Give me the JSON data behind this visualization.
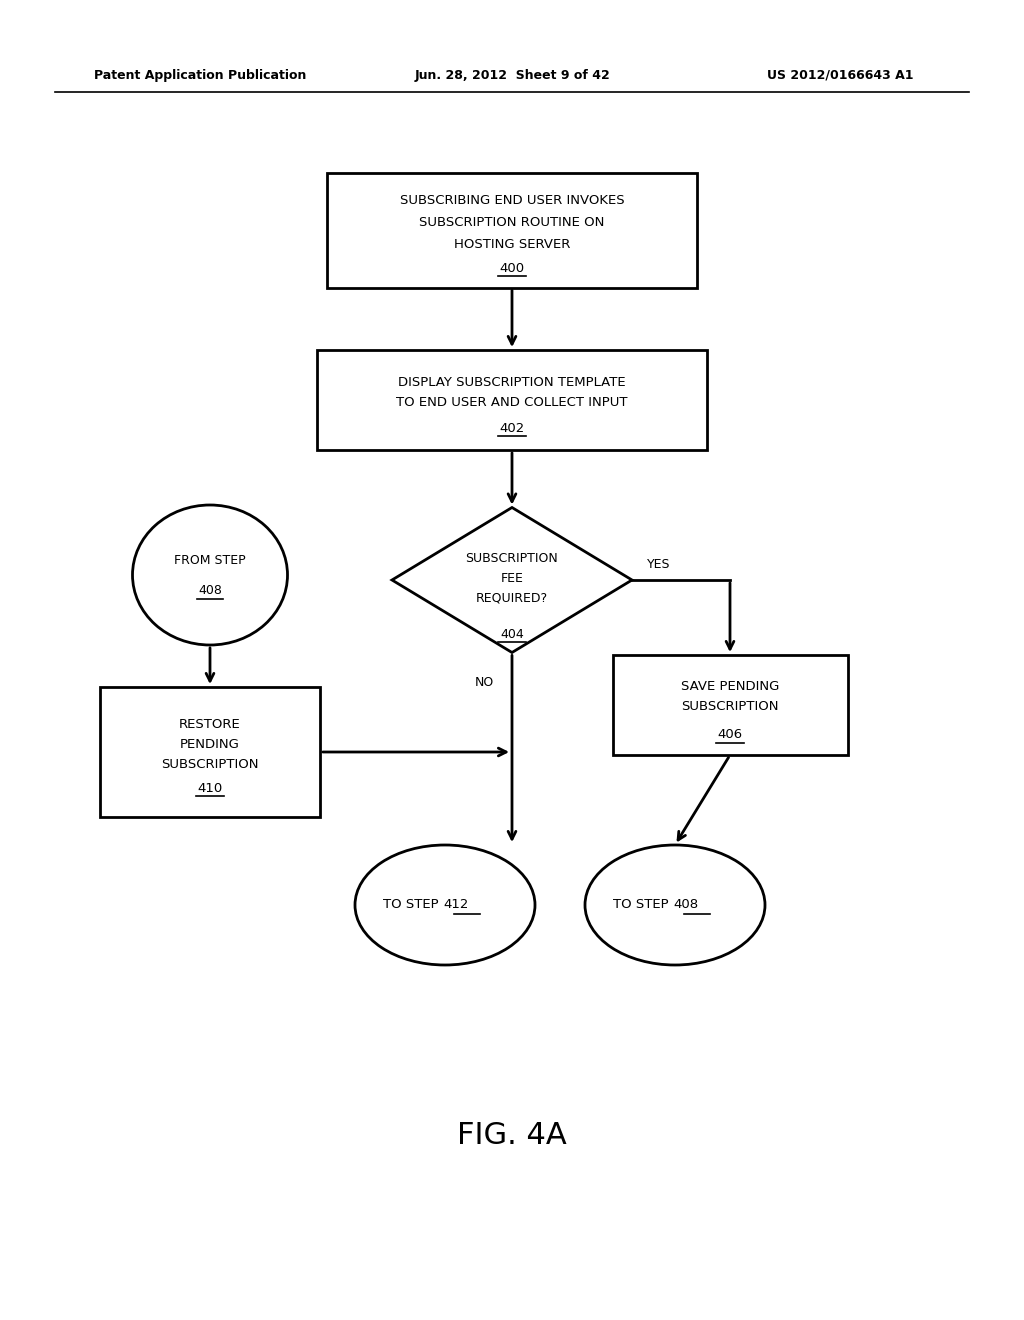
{
  "bg_color": "#ffffff",
  "header_left": "Patent Application Publication",
  "header_center": "Jun. 28, 2012  Sheet 9 of 42",
  "header_right": "US 2012/0166643 A1",
  "figure_label": "FIG. 4A",
  "lw": 2.0,
  "arrow_mutation_scale": 14,
  "fontsize_main": 9.5,
  "fontsize_small": 9.0,
  "fontsize_header": 9.0,
  "fontsize_figlabel": 22,
  "box400_lines": [
    "SUBSCRIBING END USER INVOKES",
    "SUBSCRIPTION ROUTINE ON",
    "HOSTING SERVER"
  ],
  "box400_label": "400",
  "box402_lines": [
    "DISPLAY SUBSCRIPTION TEMPLATE",
    "TO END USER AND COLLECT INPUT"
  ],
  "box402_label": "402",
  "diamond404_lines": [
    "SUBSCRIPTION",
    "FEE",
    "REQUIRED?"
  ],
  "diamond404_label": "404",
  "oval408l_lines": [
    "FROM STEP"
  ],
  "oval408l_label": "408",
  "box410_lines": [
    "RESTORE",
    "PENDING",
    "SUBSCRIPTION"
  ],
  "box410_label": "410",
  "box406_lines": [
    "SAVE PENDING",
    "SUBSCRIPTION"
  ],
  "box406_label": "406",
  "oval412_line": "TO STEP ",
  "oval412_num": "412",
  "oval408r_line": "TO STEP ",
  "oval408r_num": "408",
  "yes_label": "YES",
  "no_label": "NO"
}
